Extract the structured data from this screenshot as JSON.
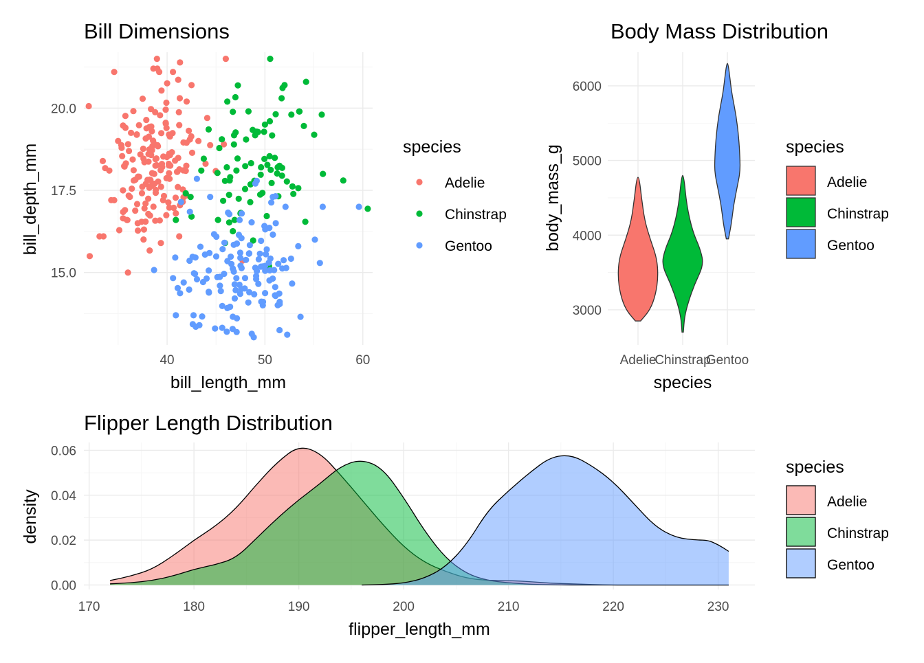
{
  "colors": {
    "Adelie": "#F8766D",
    "Chinstrap": "#00BA38",
    "Gentoo": "#619CFF"
  },
  "chart_data": [
    {
      "type": "scatter",
      "title": "Bill Dimensions",
      "xlabel": "bill_length_mm",
      "ylabel": "bill_depth_mm",
      "xlim": [
        31.5,
        61
      ],
      "ylim": [
        12.8,
        21.7
      ],
      "xticks": [
        40,
        50,
        60
      ],
      "yticks": [
        15.0,
        17.5,
        20.0
      ],
      "ytick_labels": [
        "15.0",
        "17.5",
        "20.0"
      ],
      "grid": true,
      "legend": {
        "title": "species",
        "position": "right"
      },
      "series": [
        {
          "name": "Adelie",
          "cluster": {
            "center": [
              38.8,
              18.3
            ],
            "sd": [
              2.4,
              1.2
            ],
            "n": 151,
            "seed": 11
          },
          "points": [
            [
              32.1,
              15.5
            ],
            [
              33.5,
              16.1
            ],
            [
              34.6,
              21.1
            ],
            [
              34.6,
              17.2
            ],
            [
              35.0,
              19.0
            ],
            [
              35.9,
              16.6
            ],
            [
              36.0,
              15.0
            ],
            [
              36.6,
              17.8
            ],
            [
              37.0,
              16.5
            ],
            [
              38.6,
              21.2
            ],
            [
              39.0,
              21.2
            ],
            [
              40.6,
              21.1
            ],
            [
              41.3,
              20.3
            ],
            [
              42.0,
              20.2
            ],
            [
              42.5,
              20.7
            ],
            [
              43.2,
              19.0
            ],
            [
              44.1,
              19.7
            ],
            [
              45.8,
              18.9
            ],
            [
              46.0,
              21.5
            ],
            [
              39.2,
              21.1
            ],
            [
              40.9,
              16.8
            ],
            [
              41.1,
              17.6
            ],
            [
              39.6,
              17.2
            ],
            [
              37.8,
              17.1
            ],
            [
              36.2,
              17.3
            ],
            [
              35.7,
              16.9
            ],
            [
              34.1,
              18.1
            ],
            [
              33.1,
              16.1
            ],
            [
              35.5,
              17.5
            ],
            [
              38.1,
              18.6
            ]
          ]
        },
        {
          "name": "Chinstrap",
          "cluster": {
            "center": [
              48.8,
              18.4
            ],
            "sd": [
              3.3,
              1.1
            ],
            "n": 68,
            "seed": 23
          },
          "points": [
            [
              40.9,
              16.6
            ],
            [
              42.4,
              17.3
            ],
            [
              42.5,
              16.7
            ],
            [
              43.5,
              18.1
            ],
            [
              45.2,
              16.6
            ],
            [
              46.1,
              18.2
            ],
            [
              46.9,
              16.6
            ],
            [
              50.0,
              19.5
            ],
            [
              51.3,
              18.2
            ],
            [
              52.0,
              20.7
            ],
            [
              52.7,
              19.8
            ],
            [
              53.5,
              19.9
            ],
            [
              54.2,
              20.8
            ],
            [
              55.8,
              19.8
            ],
            [
              58.0,
              17.8
            ],
            [
              49.6,
              18.2
            ],
            [
              50.5,
              19.6
            ],
            [
              51.7,
              20.3
            ],
            [
              46.4,
              17.8
            ],
            [
              47.5,
              16.8
            ]
          ]
        },
        {
          "name": "Gentoo",
          "cluster": {
            "center": [
              47.5,
              15.0
            ],
            "sd": [
              3.0,
              1.0
            ],
            "n": 123,
            "seed": 37
          },
          "points": [
            [
              40.9,
              13.7
            ],
            [
              41.7,
              14.7
            ],
            [
              42.7,
              13.7
            ],
            [
              44.4,
              17.3
            ],
            [
              45.4,
              14.6
            ],
            [
              46.1,
              13.2
            ],
            [
              47.6,
              14.5
            ],
            [
              48.4,
              14.4
            ],
            [
              49.1,
              14.8
            ],
            [
              50.0,
              15.2
            ],
            [
              50.8,
              17.3
            ],
            [
              51.1,
              16.5
            ],
            [
              52.1,
              17.0
            ],
            [
              53.4,
              15.8
            ],
            [
              55.1,
              16.0
            ],
            [
              55.9,
              17.0
            ],
            [
              59.6,
              17.0
            ],
            [
              43.3,
              13.4
            ],
            [
              44.9,
              13.3
            ],
            [
              50.4,
              15.3
            ]
          ]
        }
      ]
    },
    {
      "type": "violin",
      "title": "Body Mass Distribution",
      "xlabel": "species",
      "ylabel": "body_mass_g",
      "categories": [
        "Adelie",
        "Chinstrap",
        "Gentoo"
      ],
      "ylim": [
        2530,
        6450
      ],
      "yticks": [
        3000,
        4000,
        5000,
        6000
      ],
      "grid": true,
      "legend": {
        "title": "species",
        "position": "right"
      },
      "series": [
        {
          "name": "Adelie",
          "profile": [
            [
              2850,
              0.12
            ],
            [
              3000,
              0.55
            ],
            [
              3200,
              0.8
            ],
            [
              3450,
              0.92
            ],
            [
              3700,
              0.85
            ],
            [
              3950,
              0.55
            ],
            [
              4200,
              0.3
            ],
            [
              4500,
              0.16
            ],
            [
              4775,
              0.05
            ]
          ]
        },
        {
          "name": "Chinstrap",
          "profile": [
            [
              2700,
              0.03
            ],
            [
              2900,
              0.08
            ],
            [
              3100,
              0.25
            ],
            [
              3350,
              0.55
            ],
            [
              3600,
              0.95
            ],
            [
              3800,
              0.82
            ],
            [
              4050,
              0.45
            ],
            [
              4400,
              0.18
            ],
            [
              4800,
              0.05
            ]
          ]
        },
        {
          "name": "Gentoo",
          "profile": [
            [
              3950,
              0.05
            ],
            [
              4150,
              0.18
            ],
            [
              4400,
              0.28
            ],
            [
              4650,
              0.45
            ],
            [
              4850,
              0.58
            ],
            [
              5050,
              0.57
            ],
            [
              5300,
              0.52
            ],
            [
              5600,
              0.4
            ],
            [
              5900,
              0.2
            ],
            [
              6100,
              0.12
            ],
            [
              6300,
              0.03
            ]
          ]
        }
      ]
    },
    {
      "type": "area",
      "title": "Flipper Length Distribution",
      "xlabel": "flipper_length_mm",
      "ylabel": "density",
      "xlim": [
        169.5,
        233.5
      ],
      "ylim": [
        -0.002,
        0.0635
      ],
      "xticks": [
        170,
        180,
        190,
        200,
        210,
        220,
        230
      ],
      "yticks": [
        0.0,
        0.02,
        0.04,
        0.06
      ],
      "ytick_labels": [
        "0.00",
        "0.02",
        "0.04",
        "0.06"
      ],
      "grid": true,
      "legend": {
        "title": "species",
        "position": "right"
      },
      "series": [
        {
          "name": "Adelie",
          "x": [
            172,
            174,
            176,
            178,
            180,
            182,
            184,
            186,
            188,
            190,
            192,
            194,
            196,
            198,
            200,
            202,
            204,
            206,
            208,
            210,
            212,
            214,
            216,
            218,
            220,
            222,
            224,
            226,
            228,
            230,
            231
          ],
          "y": [
            0.002,
            0.004,
            0.007,
            0.013,
            0.02,
            0.026,
            0.034,
            0.045,
            0.055,
            0.062,
            0.059,
            0.049,
            0.038,
            0.027,
            0.017,
            0.01,
            0.006,
            0.003,
            0.002,
            0.002,
            0.0015,
            0.0008,
            0.0005,
            0.0002,
            0,
            0,
            0,
            0,
            0,
            0,
            0
          ]
        },
        {
          "name": "Chinstrap",
          "x": [
            172,
            174,
            176,
            178,
            180,
            182,
            184,
            186,
            188,
            190,
            192,
            194,
            196,
            198,
            200,
            202,
            204,
            206,
            208,
            210,
            212,
            214,
            216,
            218,
            220,
            222,
            224,
            226,
            228,
            230,
            231
          ],
          "y": [
            0.0005,
            0.001,
            0.002,
            0.004,
            0.007,
            0.009,
            0.012,
            0.021,
            0.03,
            0.038,
            0.045,
            0.053,
            0.056,
            0.052,
            0.039,
            0.024,
            0.012,
            0.005,
            0.002,
            0.001,
            0.0003,
            0.0001,
            0,
            0,
            0,
            0,
            0,
            0,
            0,
            0,
            0
          ]
        },
        {
          "name": "Gentoo",
          "x": [
            196,
            198,
            200,
            202,
            204,
            206,
            208,
            210,
            212,
            214,
            216,
            218,
            220,
            222,
            224,
            226,
            228,
            229,
            230,
            231
          ],
          "y": [
            0,
            0.0002,
            0.0008,
            0.003,
            0.008,
            0.018,
            0.033,
            0.042,
            0.05,
            0.057,
            0.058,
            0.053,
            0.046,
            0.036,
            0.026,
            0.021,
            0.02,
            0.02,
            0.018,
            0.015
          ]
        }
      ]
    }
  ]
}
